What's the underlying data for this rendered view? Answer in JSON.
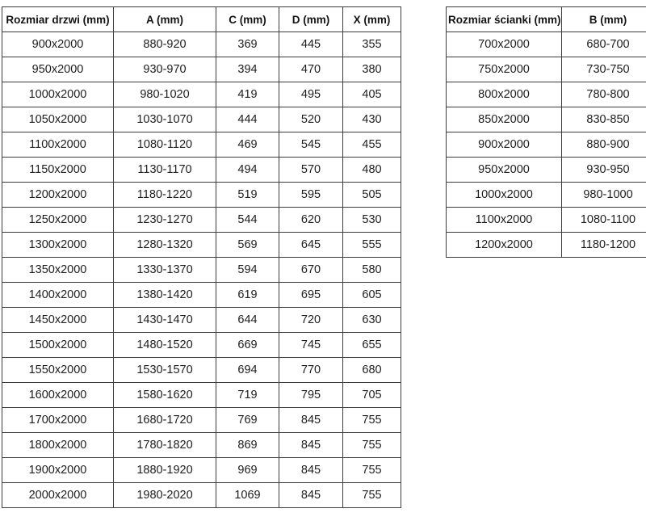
{
  "colors": {
    "background": "#ffffff",
    "border": "#3d3d3d",
    "text": "#1e1e1e"
  },
  "door_table": {
    "headers": [
      "Rozmiar drzwi (mm)",
      "A (mm)",
      "C (mm)",
      "D (mm)",
      "X (mm)"
    ],
    "rows": [
      [
        "900x2000",
        "880-920",
        "369",
        "445",
        "355"
      ],
      [
        "950x2000",
        "930-970",
        "394",
        "470",
        "380"
      ],
      [
        "1000x2000",
        "980-1020",
        "419",
        "495",
        "405"
      ],
      [
        "1050x2000",
        "1030-1070",
        "444",
        "520",
        "430"
      ],
      [
        "1100x2000",
        "1080-1120",
        "469",
        "545",
        "455"
      ],
      [
        "1150x2000",
        "1130-1170",
        "494",
        "570",
        "480"
      ],
      [
        "1200x2000",
        "1180-1220",
        "519",
        "595",
        "505"
      ],
      [
        "1250x2000",
        "1230-1270",
        "544",
        "620",
        "530"
      ],
      [
        "1300x2000",
        "1280-1320",
        "569",
        "645",
        "555"
      ],
      [
        "1350x2000",
        "1330-1370",
        "594",
        "670",
        "580"
      ],
      [
        "1400x2000",
        "1380-1420",
        "619",
        "695",
        "605"
      ],
      [
        "1450x2000",
        "1430-1470",
        "644",
        "720",
        "630"
      ],
      [
        "1500x2000",
        "1480-1520",
        "669",
        "745",
        "655"
      ],
      [
        "1550x2000",
        "1530-1570",
        "694",
        "770",
        "680"
      ],
      [
        "1600x2000",
        "1580-1620",
        "719",
        "795",
        "705"
      ],
      [
        "1700x2000",
        "1680-1720",
        "769",
        "845",
        "755"
      ],
      [
        "1800x2000",
        "1780-1820",
        "869",
        "845",
        "755"
      ],
      [
        "1900x2000",
        "1880-1920",
        "969",
        "845",
        "755"
      ],
      [
        "2000x2000",
        "1980-2020",
        "1069",
        "845",
        "755"
      ]
    ]
  },
  "wall_table": {
    "headers": [
      "Rozmiar ścianki (mm)",
      "B (mm)"
    ],
    "rows": [
      [
        "700x2000",
        "680-700"
      ],
      [
        "750x2000",
        "730-750"
      ],
      [
        "800x2000",
        "780-800"
      ],
      [
        "850x2000",
        "830-850"
      ],
      [
        "900x2000",
        "880-900"
      ],
      [
        "950x2000",
        "930-950"
      ],
      [
        "1000x2000",
        "980-1000"
      ],
      [
        "1100x2000",
        "1080-1100"
      ],
      [
        "1200x2000",
        "1180-1200"
      ]
    ]
  }
}
